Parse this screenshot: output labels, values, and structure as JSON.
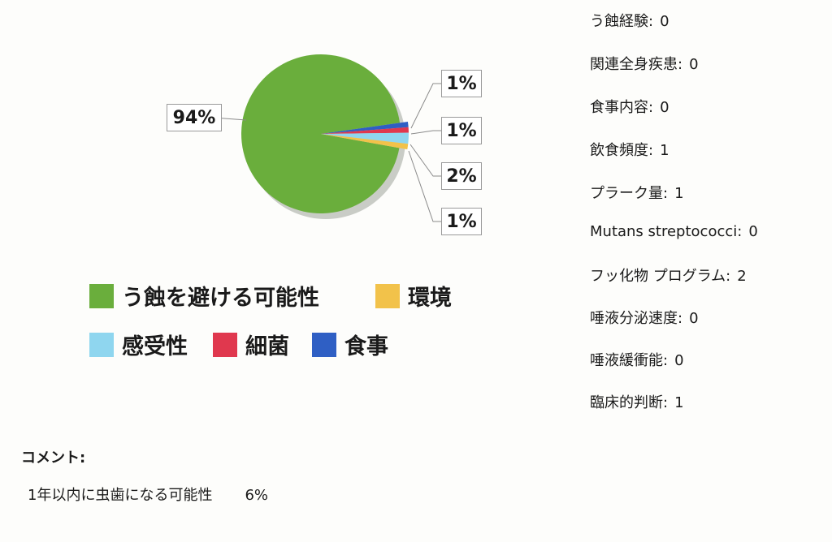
{
  "chart_data": {
    "type": "pie",
    "slices": [
      {
        "label": "う蝕を避ける可能性",
        "value": 94,
        "display": "94%",
        "color": "#6aae3c"
      },
      {
        "label": "食事",
        "value": 1,
        "display": "1%",
        "color": "#2f5fc4"
      },
      {
        "label": "細菌",
        "value": 1,
        "display": "1%",
        "color": "#e0384e"
      },
      {
        "label": "感受性",
        "value": 2,
        "display": "2%",
        "color": "#8fd6ef"
      },
      {
        "label": "環境",
        "value": 1,
        "display": "1%",
        "color": "#f2c24a"
      }
    ],
    "legend": [
      {
        "label": "う蝕を避ける可能性",
        "color": "#6aae3c"
      },
      {
        "label": "環境",
        "color": "#f2c24a"
      },
      {
        "label": "感受性",
        "color": "#8fd6ef"
      },
      {
        "label": "細菌",
        "color": "#e0384e"
      },
      {
        "label": "食事",
        "color": "#2f5fc4"
      }
    ],
    "legend_position": "bottom"
  },
  "stats": [
    {
      "label": "う蝕経験:",
      "value": "0"
    },
    {
      "label": "関連全身疾患:",
      "value": "0"
    },
    {
      "label": "食事内容:",
      "value": "0"
    },
    {
      "label": "飲食頻度:",
      "value": "1"
    },
    {
      "label": "プラーク量:",
      "value": "1"
    },
    {
      "label": "Mutans streptococci:",
      "value": "0"
    },
    {
      "label": "フッ化物 プログラム:",
      "value": "2"
    },
    {
      "label": "唾液分泌速度:",
      "value": "0"
    },
    {
      "label": "唾液緩衝能:",
      "value": "0"
    },
    {
      "label": "臨床的判断:",
      "value": "1"
    }
  ],
  "comment": {
    "title": "コメント:",
    "text": "1年以内に虫歯になる可能性",
    "value": "6%"
  }
}
